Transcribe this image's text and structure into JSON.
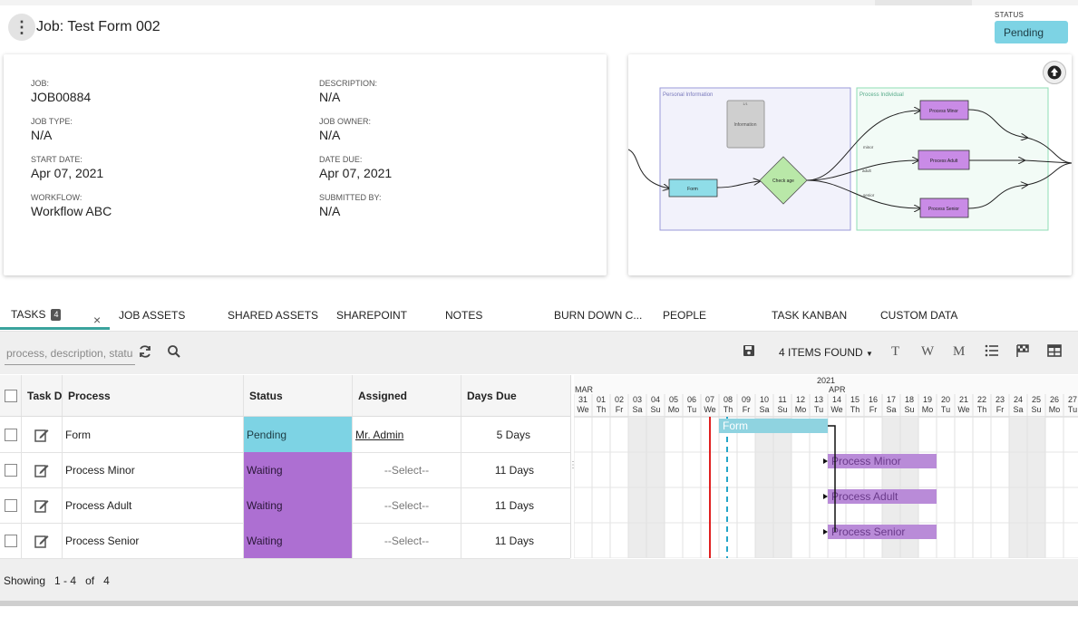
{
  "header": {
    "title": "Job: Test Form 002",
    "status_label": "STATUS",
    "status_value": "Pending",
    "status_color": "#7dd3e4"
  },
  "info": {
    "job_label": "JOB:",
    "job_value": "JOB00884",
    "description_label": "DESCRIPTION:",
    "description_value": "N/A",
    "job_type_label": "JOB TYPE:",
    "job_type_value": "N/A",
    "job_owner_label": "JOB OWNER:",
    "job_owner_value": "N/A",
    "start_date_label": "START DATE:",
    "start_date_value": "Apr 07, 2021",
    "date_due_label": "DATE DUE:",
    "date_due_value": "Apr 07, 2021",
    "workflow_label": "WORKFLOW:",
    "workflow_value": "Workflow ABC",
    "submitted_by_label": "SUBMITTED BY:",
    "submitted_by_value": "N/A"
  },
  "flow": {
    "lane1": "Personal Information",
    "lane2": "Process Individual",
    "info_node": "Information",
    "info_node_small": "1/1",
    "form_node": "Form",
    "decision_node": "Check age",
    "minor_node": "Process Minor",
    "adult_node": "Process Adult",
    "senior_node": "Process Senior",
    "edge_minor": "minor",
    "edge_adult": "adult",
    "edge_senior": "senior",
    "upload_icon": "upload-arrow-icon"
  },
  "tabs": {
    "tasks": "TASKS",
    "tasks_count": "4",
    "close": "×",
    "job_assets": "JOB ASSETS",
    "shared_assets": "SHARED ASSETS",
    "sharepoint": "SHAREPOINT",
    "notes": "NOTES",
    "burn_down": "BURN DOWN C...",
    "people": "PEOPLE",
    "task_kanban": "TASK KANBAN",
    "custom_data": "CUSTOM DATA"
  },
  "toolbar": {
    "search_placeholder": "process, description, status",
    "items_found": "4 ITEMS FOUND",
    "view_t": "T",
    "view_w": "W",
    "view_m": "M"
  },
  "grid": {
    "columns": [
      "Task Details",
      "Process",
      "Status",
      "Assigned",
      "Days Due"
    ],
    "rows": [
      {
        "process": "Form",
        "status": "Pending",
        "assigned": "Mr. Admin",
        "days_due": "5 Days"
      },
      {
        "process": "Process Minor",
        "status": "Waiting",
        "assigned": "--Select--",
        "days_due": "11 Days"
      },
      {
        "process": "Process Adult",
        "status": "Waiting",
        "assigned": "--Select--",
        "days_due": "11 Days"
      },
      {
        "process": "Process Senior",
        "status": "Waiting",
        "assigned": "--Select--",
        "days_due": "11 Days"
      }
    ]
  },
  "footer": {
    "showing": "Showing",
    "range": "1 - 4",
    "of": "of",
    "total": "4"
  },
  "gantt": {
    "year": "2021",
    "month1": "MAR",
    "month2": "APR",
    "days": [
      {
        "n": "31",
        "d": "We"
      },
      {
        "n": "01",
        "d": "Th"
      },
      {
        "n": "02",
        "d": "Fr"
      },
      {
        "n": "03",
        "d": "Sa"
      },
      {
        "n": "04",
        "d": "Su"
      },
      {
        "n": "05",
        "d": "Mo"
      },
      {
        "n": "06",
        "d": "Tu"
      },
      {
        "n": "07",
        "d": "We"
      },
      {
        "n": "08",
        "d": "Th"
      },
      {
        "n": "09",
        "d": "Fr"
      },
      {
        "n": "10",
        "d": "Sa"
      },
      {
        "n": "11",
        "d": "Su"
      },
      {
        "n": "12",
        "d": "Mo"
      },
      {
        "n": "13",
        "d": "Tu"
      },
      {
        "n": "14",
        "d": "We"
      },
      {
        "n": "15",
        "d": "Th"
      },
      {
        "n": "16",
        "d": "Fr"
      },
      {
        "n": "17",
        "d": "Sa"
      },
      {
        "n": "18",
        "d": "Su"
      },
      {
        "n": "19",
        "d": "Mo"
      },
      {
        "n": "20",
        "d": "Tu"
      },
      {
        "n": "21",
        "d": "We"
      },
      {
        "n": "22",
        "d": "Th"
      },
      {
        "n": "23",
        "d": "Fr"
      },
      {
        "n": "24",
        "d": "Sa"
      },
      {
        "n": "25",
        "d": "Su"
      },
      {
        "n": "26",
        "d": "Mo"
      },
      {
        "n": "27",
        "d": "Tu"
      }
    ],
    "bars": [
      {
        "label": "Form",
        "start": "08",
        "end": "13",
        "color": "#8fd3e0"
      },
      {
        "label": "Process Minor",
        "start": "14",
        "end": "19",
        "color": "#b98bd8"
      },
      {
        "label": "Process Adult",
        "start": "14",
        "end": "19",
        "color": "#b98bd8"
      },
      {
        "label": "Process Senior",
        "start": "14",
        "end": "19",
        "color": "#b98bd8"
      }
    ],
    "today_color": "#e02020",
    "marker_color": "#24a5c8"
  }
}
